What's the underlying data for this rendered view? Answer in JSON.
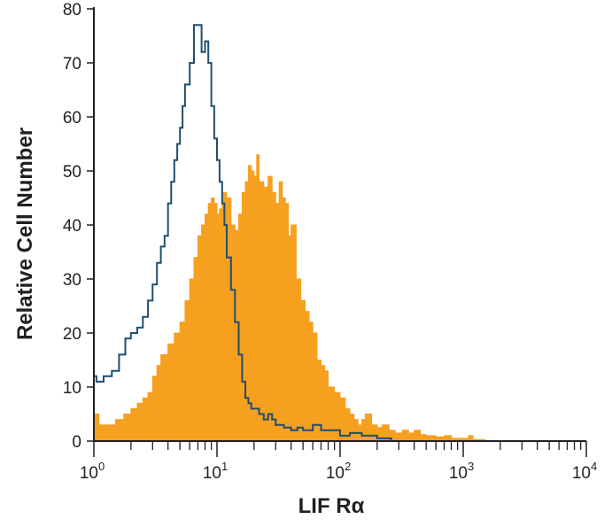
{
  "chart_data": {
    "type": "area",
    "title": "",
    "xlabel": "LIF Rα",
    "ylabel": "Relative Cell Number",
    "x_scale": "log",
    "xlim": [
      1,
      10000
    ],
    "ylim": [
      0,
      80
    ],
    "x_ticks": [
      {
        "value": 1,
        "base": "10",
        "exp": "0"
      },
      {
        "value": 10,
        "base": "10",
        "exp": "1"
      },
      {
        "value": 100,
        "base": "10",
        "exp": "2"
      },
      {
        "value": 1000,
        "base": "10",
        "exp": "3"
      },
      {
        "value": 10000,
        "base": "10",
        "exp": "4"
      }
    ],
    "y_ticks": [
      0,
      10,
      20,
      30,
      40,
      50,
      60,
      70,
      80
    ],
    "grid": false,
    "legend": "none",
    "series": [
      {
        "style": "filled",
        "color": "#f6a020",
        "x": [
          1.0,
          1.1,
          1.25,
          1.5,
          1.75,
          2.0,
          2.25,
          2.5,
          2.75,
          3.0,
          3.25,
          3.5,
          4.0,
          4.5,
          5.0,
          5.5,
          6.0,
          6.5,
          7.0,
          7.5,
          8.0,
          8.5,
          9.0,
          9.5,
          10.0,
          10.5,
          11.0,
          12.0,
          13.0,
          14.0,
          15.0,
          16.0,
          17.0,
          18.0,
          19.0,
          20.0,
          21.0,
          22.0,
          24.0,
          26.0,
          28.0,
          30.0,
          32.0,
          34.0,
          36.0,
          38.0,
          40.0,
          44.0,
          48.0,
          52.0,
          56.0,
          60.0,
          65.0,
          70.0,
          75.0,
          80.0,
          90.0,
          100.0,
          110.0,
          120.0,
          130.0,
          140.0,
          150.0,
          160.0,
          180.0,
          200.0,
          220.0,
          250.0,
          280.0,
          320.0,
          360.0,
          400.0,
          450.0,
          500.0,
          600.0,
          700.0,
          800.0,
          1000.0,
          1100.0,
          1200.0,
          1500.0
        ],
        "y": [
          5,
          3,
          3,
          4,
          5,
          6,
          7,
          8,
          9,
          12,
          14,
          16,
          18,
          20,
          22,
          26,
          30,
          34,
          38,
          40,
          42,
          44,
          45,
          44,
          42,
          43,
          46,
          45,
          40,
          39,
          42,
          46,
          48,
          51,
          50,
          49,
          53,
          48,
          47,
          49,
          46,
          44,
          48,
          45,
          44,
          38,
          40,
          30,
          26,
          24,
          22,
          20,
          15,
          14,
          13,
          10,
          9,
          8,
          6,
          5,
          4,
          3,
          4,
          5,
          3,
          2.5,
          3,
          2,
          1.5,
          2,
          1.5,
          2,
          1.2,
          1,
          0.8,
          1,
          0.5,
          0.5,
          1,
          0.3,
          0
        ]
      },
      {
        "style": "outline",
        "color": "#1f4e70",
        "x": [
          1.0,
          1.0,
          1.05,
          1.2,
          1.4,
          1.6,
          1.8,
          2.0,
          2.25,
          2.5,
          2.75,
          3.0,
          3.25,
          3.5,
          3.75,
          4.0,
          4.25,
          4.5,
          4.75,
          5.0,
          5.25,
          5.5,
          6.0,
          6.5,
          7.0,
          7.5,
          8.0,
          8.5,
          9.0,
          9.5,
          10.0,
          10.5,
          11.0,
          11.5,
          12.0,
          13.0,
          14.0,
          15.0,
          16.0,
          17.0,
          18.0,
          19.0,
          20.0,
          22.0,
          24.0,
          26.0,
          28.0,
          30.0,
          35.0,
          40.0,
          45.0,
          50.0,
          60.0,
          70.0,
          80.0,
          100.0,
          120.0,
          150.0,
          180.0,
          200.0,
          230.0,
          260.0
        ],
        "y": [
          46,
          12,
          11,
          12,
          13,
          16,
          19,
          20,
          21,
          23,
          26,
          29,
          33,
          36,
          38,
          44,
          48,
          52,
          55,
          58,
          62,
          66,
          70,
          77,
          77,
          72,
          74,
          70,
          62,
          56,
          52,
          48,
          44,
          40,
          34,
          28,
          22,
          16,
          11,
          8,
          7,
          6,
          6,
          5,
          4,
          5,
          4,
          3,
          2.5,
          2,
          2.5,
          2,
          3,
          2,
          2,
          1,
          1.5,
          1,
          1,
          0.5,
          0.5,
          0
        ]
      }
    ]
  }
}
